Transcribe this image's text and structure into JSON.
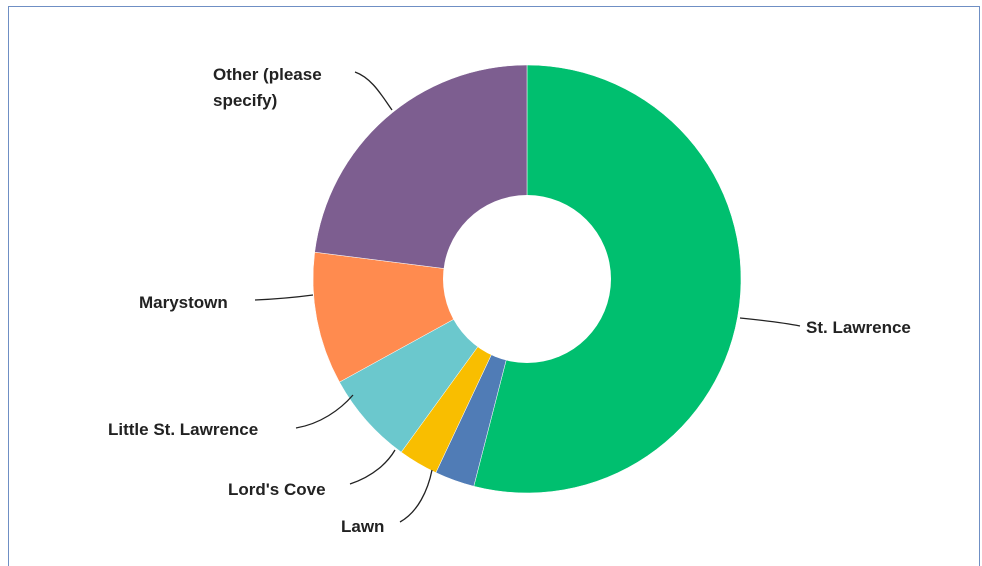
{
  "chart_data": {
    "type": "pie",
    "donut": true,
    "title": "",
    "slices": [
      {
        "label": "St. Lawrence",
        "value": 54.0,
        "color": "#00bf6f"
      },
      {
        "label": "Lawn",
        "value": 3.0,
        "color": "#507cb6"
      },
      {
        "label": "Lord's Cove",
        "value": 3.0,
        "color": "#f9be00"
      },
      {
        "label": "Little St. Lawrence",
        "value": 7.0,
        "color": "#6bc8cd"
      },
      {
        "label": "Marystown",
        "value": 10.0,
        "color": "#ff8b4f"
      },
      {
        "label": "Other (please specify)",
        "value": 23.0,
        "color": "#7d5e90"
      }
    ]
  },
  "labels": {
    "st_lawrence": "St. Lawrence",
    "lawn": "Lawn",
    "lords_cove": "Lord's Cove",
    "little_st_lawrence": "Little St. Lawrence",
    "marystown": "Marystown",
    "other_line1": "Other (please",
    "other_line2": "specify)"
  }
}
